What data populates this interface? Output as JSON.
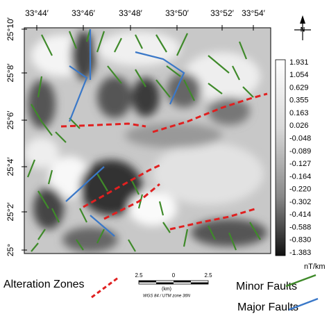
{
  "map": {
    "top_labels": [
      "33°44′",
      "33°46′",
      "33°48′",
      "33°50′",
      "33°52′",
      "33°54′"
    ],
    "left_labels": [
      "25°10′",
      "25°8′",
      "25°6′",
      "25°4′",
      "25°2′",
      "25°"
    ],
    "north_label": "N",
    "colorbar": {
      "labels": [
        "1.931",
        "1.054",
        "0.629",
        "0.355",
        "0.163",
        "0.026",
        "-0.048",
        "-0.089",
        "-0.127",
        "-0.164",
        "-0.220",
        "-0.302",
        "-0.414",
        "-0.588",
        "-0.830",
        "-1.383"
      ],
      "unit": "nT/km"
    },
    "scale_bar": {
      "labels": [
        "2.5",
        "0",
        "2.5"
      ],
      "unit": "(km)",
      "projection": "WGS 84 / UTM zone 36N"
    },
    "legend": [
      {
        "label": "Alteration Zones",
        "color": "#e02020"
      },
      {
        "label": "Minor Faults",
        "color": "#3f8a2a"
      },
      {
        "label": "Major Faults",
        "color": "#3a78c8"
      }
    ]
  }
}
